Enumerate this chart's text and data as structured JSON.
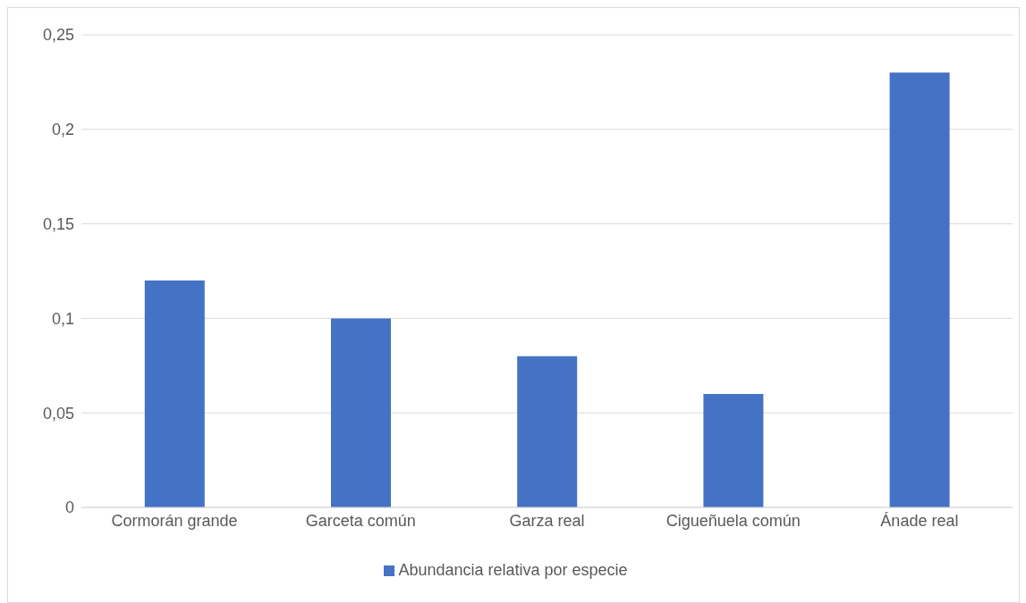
{
  "chart_data": {
    "type": "bar",
    "categories": [
      "Cormorán grande",
      "Garceta común",
      "Garza real",
      "Cigueñuela común",
      "Ánade real"
    ],
    "series": [
      {
        "name": "Abundancia relativa por especie",
        "color": "#4472c4",
        "values": [
          0.12,
          0.1,
          0.08,
          0.06,
          0.23
        ]
      }
    ],
    "ylim": [
      0,
      0.25
    ],
    "yticks": [
      {
        "value": 0,
        "label": "0"
      },
      {
        "value": 0.05,
        "label": "0,05"
      },
      {
        "value": 0.1,
        "label": "0,1"
      },
      {
        "value": 0.15,
        "label": "0,15"
      },
      {
        "value": 0.2,
        "label": "0,2"
      },
      {
        "value": 0.25,
        "label": "0,25"
      }
    ],
    "grid": "y",
    "legend": "bottom"
  }
}
